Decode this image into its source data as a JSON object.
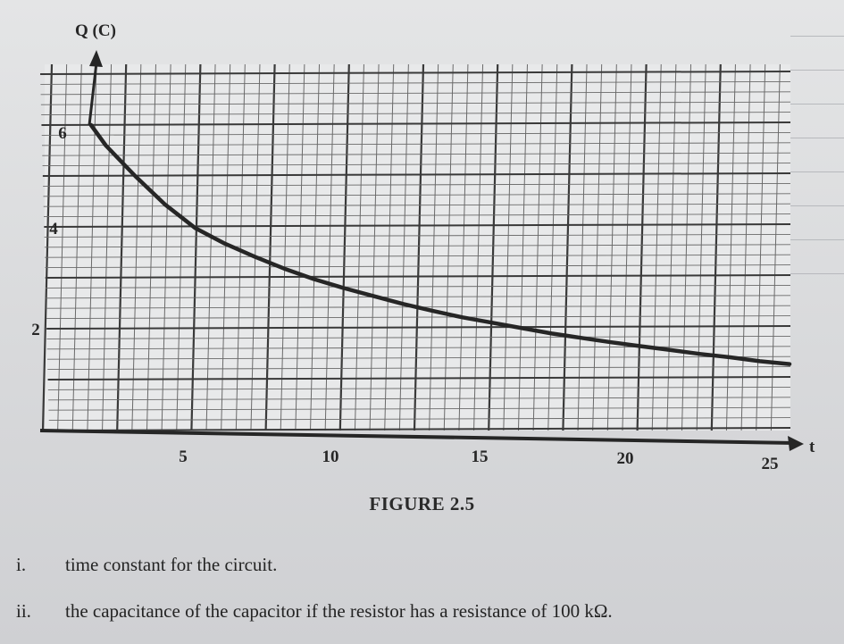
{
  "chart_data": {
    "type": "line",
    "x_tick_labels": [
      "5",
      "10",
      "15",
      "20",
      "25"
    ],
    "y_tick_labels": [
      "2",
      "4",
      "6"
    ],
    "y_axis_title": "Q (C)",
    "x_axis_title": "t",
    "xlim": [
      0,
      25
    ],
    "ylim": [
      0,
      7
    ],
    "grid": true,
    "series": [
      {
        "x": [
          1.5,
          2,
          3,
          4,
          5,
          6,
          7,
          8,
          9,
          10,
          11,
          12,
          13,
          14,
          15,
          16,
          17,
          18,
          19,
          20,
          21,
          22,
          23,
          24,
          25
        ],
        "y": [
          6.0,
          5.6,
          5.0,
          4.45,
          4.0,
          3.7,
          3.45,
          3.22,
          3.02,
          2.85,
          2.7,
          2.55,
          2.42,
          2.3,
          2.2,
          2.1,
          2.0,
          1.92,
          1.84,
          1.77,
          1.7,
          1.63,
          1.57,
          1.5,
          1.45
        ]
      }
    ]
  },
  "caption": "FIGURE 2.5",
  "questions": [
    {
      "number": "i.",
      "text": "time constant for the circuit."
    },
    {
      "number": "ii.",
      "text": "the capacitance of the capacitor if the resistor has a resistance of 100 kΩ."
    }
  ],
  "colors": {
    "ink": "#262626",
    "grid_major": "#3a3a3a",
    "grid_minor": "#6a6a6a",
    "paper": "#e8e9ea"
  }
}
